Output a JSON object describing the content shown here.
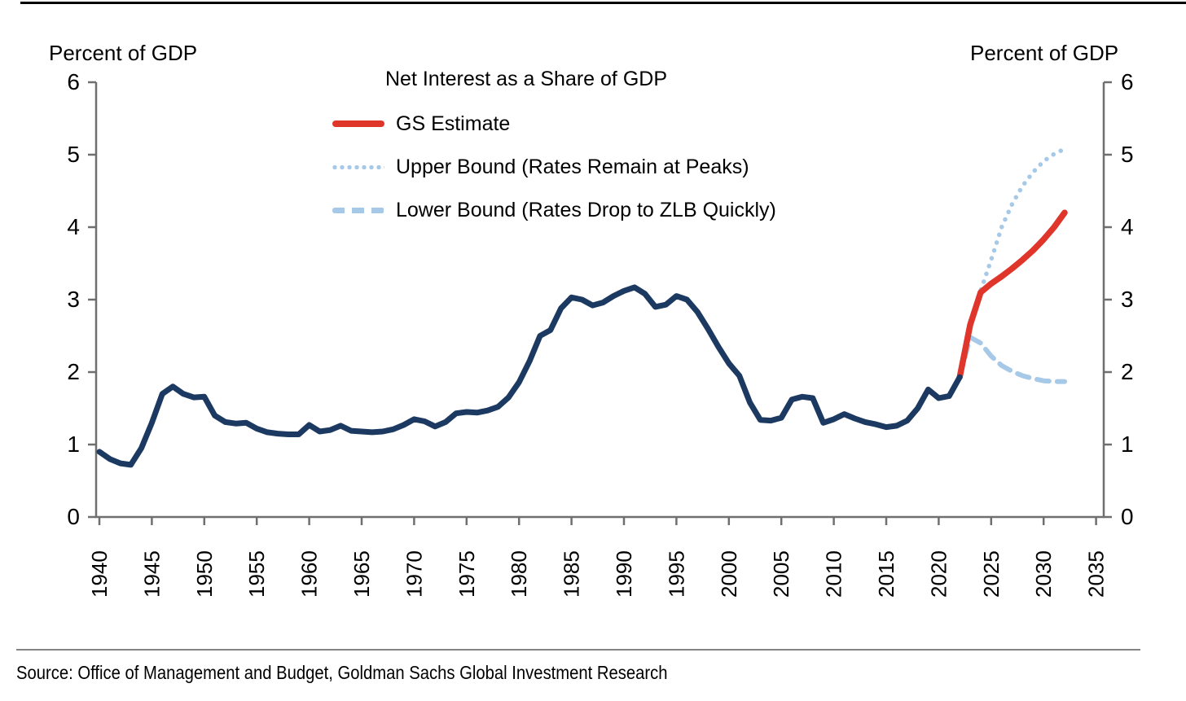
{
  "page": {
    "source_note": "Source: Office of Management and Budget, Goldman Sachs Global Investment Research"
  },
  "chart_data": {
    "type": "line",
    "title": "Net Interest as a Share of GDP",
    "ylabel_left": "Percent of GDP",
    "ylabel_right": "Percent of GDP",
    "xlabel": "",
    "ylim": [
      0,
      6
    ],
    "yticks": [
      0,
      1,
      2,
      3,
      4,
      5,
      6
    ],
    "xticks": [
      1940,
      1945,
      1950,
      1955,
      1960,
      1965,
      1970,
      1975,
      1980,
      1985,
      1990,
      1995,
      2000,
      2005,
      2010,
      2015,
      2020,
      2025,
      2030,
      2035
    ],
    "grid": false,
    "legend_position": "upper center",
    "colors": {
      "history": "#1c3a61",
      "estimate": "#e0352b",
      "bounds": "#a6c9e8",
      "axis": "#6f6f6f",
      "text": "#000000"
    },
    "legend": [
      {
        "label": "GS Estimate",
        "style": "solid",
        "color": "#e0352b"
      },
      {
        "label": "Upper Bound (Rates Remain at Peaks)",
        "style": "dotted",
        "color": "#a6c9e8"
      },
      {
        "label": "Lower Bound (Rates Drop to ZLB Quickly)",
        "style": "dashed",
        "color": "#a6c9e8"
      }
    ],
    "series": [
      {
        "name": "Net Interest (history)",
        "style": "solid",
        "color": "#1c3a61",
        "width": 7,
        "start_year": 1940,
        "values": [
          0.9,
          0.8,
          0.74,
          0.72,
          0.95,
          1.3,
          1.7,
          1.8,
          1.7,
          1.65,
          1.66,
          1.4,
          1.31,
          1.29,
          1.3,
          1.22,
          1.17,
          1.15,
          1.14,
          1.14,
          1.27,
          1.18,
          1.2,
          1.26,
          1.19,
          1.18,
          1.17,
          1.18,
          1.21,
          1.27,
          1.35,
          1.32,
          1.25,
          1.31,
          1.43,
          1.45,
          1.44,
          1.47,
          1.52,
          1.65,
          1.86,
          2.15,
          2.5,
          2.58,
          2.88,
          3.03,
          3.0,
          2.92,
          2.96,
          3.05,
          3.12,
          3.17,
          3.08,
          2.9,
          2.93,
          3.05,
          3.0,
          2.83,
          2.6,
          2.35,
          2.12,
          1.95,
          1.58,
          1.34,
          1.33,
          1.37,
          1.62,
          1.66,
          1.64,
          1.3,
          1.35,
          1.42,
          1.36,
          1.31,
          1.28,
          1.24,
          1.26,
          1.33,
          1.5,
          1.76,
          1.64,
          1.67,
          1.93
        ]
      },
      {
        "name": "GS Estimate",
        "style": "solid",
        "color": "#e0352b",
        "width": 7.5,
        "start_year": 2022,
        "values": [
          1.93,
          2.65,
          3.1,
          3.22,
          3.32,
          3.43,
          3.55,
          3.68,
          3.83,
          4.0,
          4.2
        ]
      },
      {
        "name": "Upper Bound (Rates Remain at Peaks)",
        "style": "dotted",
        "color": "#a6c9e8",
        "width": 5.5,
        "start_year": 2022,
        "values": [
          1.93,
          2.7,
          3.12,
          3.55,
          4.0,
          4.32,
          4.57,
          4.76,
          4.91,
          5.01,
          5.08
        ]
      },
      {
        "name": "Lower Bound (Rates Drop to ZLB Quickly)",
        "style": "dashed",
        "color": "#a6c9e8",
        "width": 6,
        "start_year": 2022,
        "values": [
          1.93,
          2.48,
          2.4,
          2.22,
          2.09,
          2.01,
          1.95,
          1.91,
          1.88,
          1.87,
          1.87
        ]
      }
    ]
  }
}
